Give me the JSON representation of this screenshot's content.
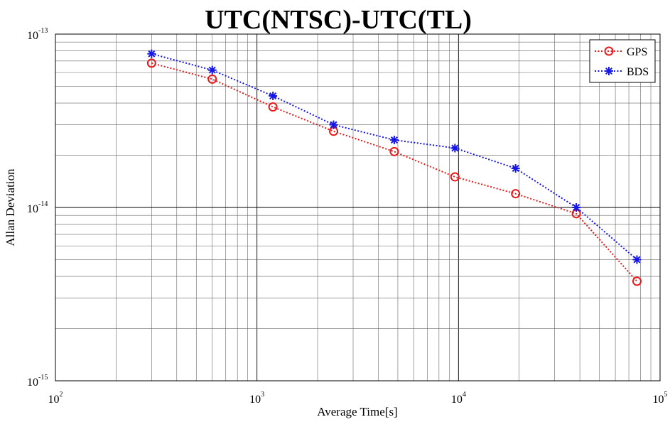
{
  "chart_data": {
    "type": "line",
    "title": "UTC(NTSC)-UTC(TL)",
    "xlabel": "Average Time[s]",
    "ylabel": "Allan Deviation",
    "xscale": "log",
    "yscale": "log",
    "xlim": [
      100,
      100000
    ],
    "ylim": [
      1e-15,
      1e-13
    ],
    "grid": true,
    "legend_position": "top-right",
    "x_ticks": [
      {
        "base": "10",
        "exp": "2",
        "value": 100
      },
      {
        "base": "10",
        "exp": "3",
        "value": 1000
      },
      {
        "base": "10",
        "exp": "4",
        "value": 10000
      },
      {
        "base": "10",
        "exp": "5",
        "value": 100000
      }
    ],
    "y_ticks": [
      {
        "base": "10",
        "exp": "-15",
        "value": 1e-15
      },
      {
        "base": "10",
        "exp": "-14",
        "value": 1e-14
      },
      {
        "base": "10",
        "exp": "-13",
        "value": 1e-13
      }
    ],
    "x": [
      300,
      600,
      1200,
      2400,
      4800,
      9600,
      19200,
      38400,
      76800
    ],
    "series": [
      {
        "name": "GPS",
        "color": "#e8191b",
        "marker": "circle",
        "values": [
          6.8e-14,
          5.5e-14,
          3.8e-14,
          2.75e-14,
          2.1e-14,
          1.5e-14,
          1.2e-14,
          9.2e-15,
          3.75e-15
        ]
      },
      {
        "name": "BDS",
        "color": "#1616e6",
        "marker": "asterisk",
        "values": [
          7.7e-14,
          6.2e-14,
          4.4e-14,
          3e-14,
          2.45e-14,
          2.2e-14,
          1.68e-14,
          1e-14,
          5e-15
        ]
      }
    ]
  }
}
